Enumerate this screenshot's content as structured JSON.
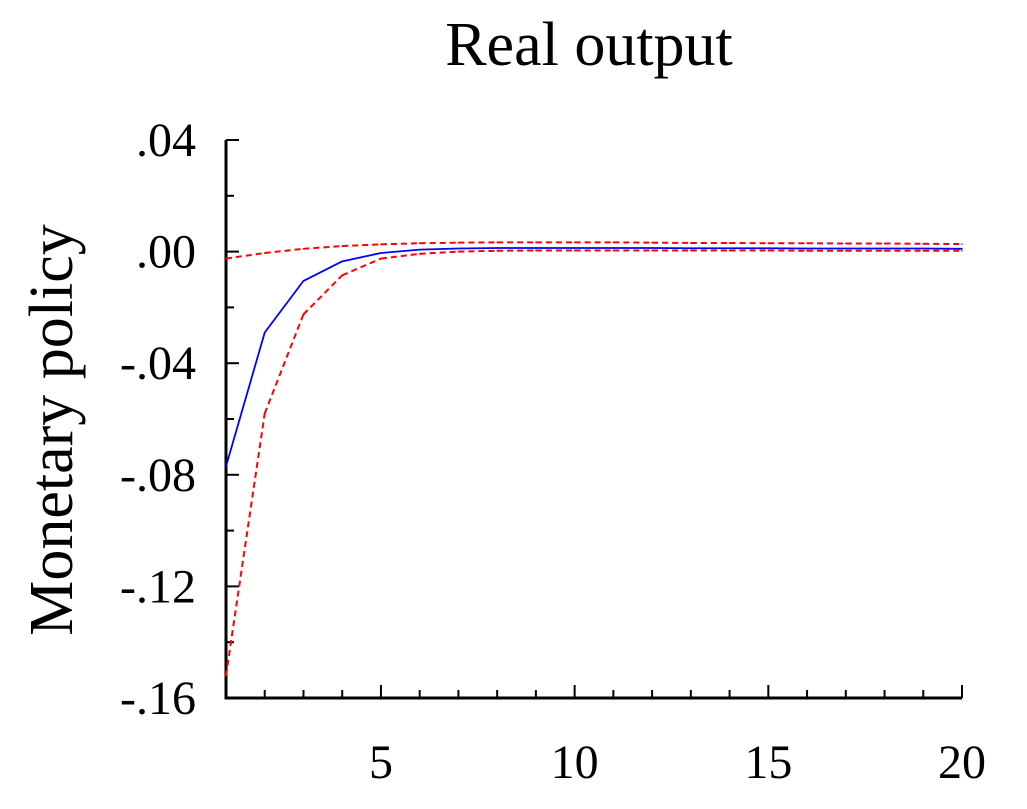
{
  "chart_data": {
    "type": "line",
    "title": "Real output",
    "ylabel": "Monetary policy",
    "xlabel": "",
    "xlim": [
      1,
      20
    ],
    "ylim": [
      -0.16,
      0.04
    ],
    "x_ticks": [
      5,
      10,
      15,
      20
    ],
    "x_tick_labels": [
      "5",
      "10",
      "15",
      "20"
    ],
    "y_ticks": [
      0.04,
      0.0,
      -0.04,
      -0.08,
      -0.12,
      -0.16
    ],
    "y_tick_labels": [
      ".04",
      ".00",
      "-.04",
      "-.08",
      "-.12",
      "-.16"
    ],
    "grid": false,
    "x": [
      1,
      2,
      3,
      4,
      5,
      6,
      7,
      8,
      9,
      10,
      11,
      12,
      13,
      14,
      15,
      16,
      17,
      18,
      19,
      20
    ],
    "series": [
      {
        "role": "response",
        "color": "#0000ff",
        "style": "solid",
        "values": [
          -0.077,
          -0.029,
          -0.0105,
          -0.0035,
          -0.0005,
          0.0007,
          0.0011,
          0.0013,
          0.0013,
          0.0013,
          0.0013,
          0.0013,
          0.0012,
          0.0012,
          0.0012,
          0.0011,
          0.0011,
          0.0011,
          0.0011,
          0.001
        ]
      },
      {
        "role": "upper-band",
        "color": "#ff0000",
        "style": "dashed",
        "values": [
          -0.0025,
          -0.0005,
          0.001,
          0.002,
          0.0026,
          0.003,
          0.0032,
          0.0033,
          0.0033,
          0.0033,
          0.0033,
          0.0032,
          0.0031,
          0.0031,
          0.003,
          0.003,
          0.0029,
          0.0029,
          0.0028,
          0.0027
        ]
      },
      {
        "role": "lower-band",
        "color": "#ff0000",
        "style": "dashed",
        "values": [
          -0.152,
          -0.058,
          -0.0225,
          -0.0085,
          -0.0025,
          -0.0008,
          0.0,
          0.0003,
          0.0004,
          0.0004,
          0.0004,
          0.0004,
          0.0004,
          0.0004,
          0.0004,
          0.0003,
          0.0003,
          0.0003,
          0.0003,
          0.0003
        ]
      }
    ]
  }
}
